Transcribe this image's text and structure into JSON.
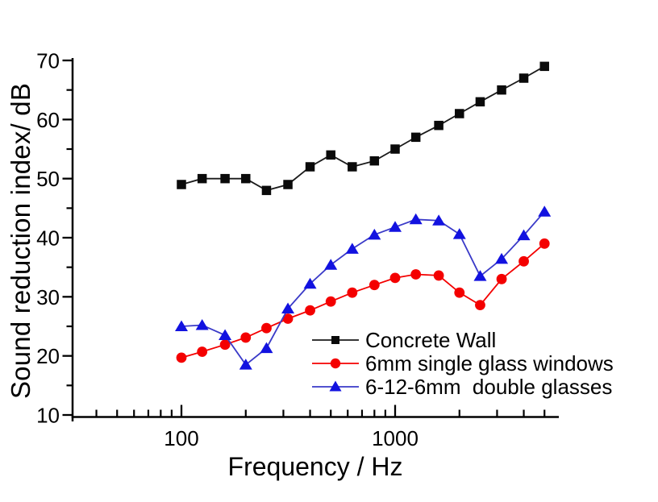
{
  "figure_title": "",
  "chart_data": {
    "type": "line",
    "x_scale": "log",
    "x": [
      100,
      125,
      160,
      200,
      250,
      315,
      400,
      500,
      630,
      800,
      1000,
      1250,
      1600,
      2000,
      2500,
      3150,
      4000,
      5000
    ],
    "series": [
      {
        "name": "Concrete Wall",
        "marker": "square",
        "line_color": "#1a1a1a",
        "marker_color": "#0a0a0a",
        "values": [
          49,
          50,
          50,
          50,
          48,
          49,
          52,
          54,
          52,
          53,
          55,
          57,
          59,
          61,
          63,
          65,
          67,
          69
        ]
      },
      {
        "name": "6mm single glass windows",
        "marker": "circle",
        "line_color": "#f40000",
        "marker_color": "#f40000",
        "values": [
          19.7,
          20.7,
          21.9,
          23.1,
          24.7,
          26.3,
          27.7,
          29.2,
          30.7,
          32.0,
          33.2,
          33.8,
          33.6,
          30.7,
          28.6,
          33.0,
          36.0,
          39.0
        ]
      },
      {
        "name": "6-12-6mm  double glasses",
        "marker": "triangle",
        "line_color": "#3a3ac8",
        "marker_color": "#1212e0",
        "values": [
          25.0,
          25.2,
          23.5,
          18.5,
          21.3,
          28.0,
          32.2,
          35.4,
          38.1,
          40.5,
          41.8,
          43.1,
          42.9,
          40.6,
          33.5,
          36.4,
          40.4,
          44.4
        ]
      }
    ],
    "xlabel": "Frequency / Hz",
    "ylabel": "Sound reduction index/ dB",
    "xlim": [
      32,
      5850
    ],
    "ylim": [
      10,
      70
    ],
    "y_major_ticks": [
      10,
      20,
      30,
      40,
      50,
      60,
      70
    ],
    "y_minor_ticks": [
      15,
      25,
      35,
      45,
      55,
      65
    ],
    "x_major_ticks": [
      100,
      1000
    ],
    "x_major_tick_labels": [
      "100",
      "1000"
    ],
    "x_minor_ticks": [
      40,
      50,
      60,
      70,
      80,
      90,
      200,
      300,
      400,
      500,
      600,
      700,
      800,
      900,
      2000,
      3000,
      4000,
      5000
    ],
    "grid": "off",
    "legend_position": "inside-bottom-right",
    "axis_color": "#000000"
  }
}
